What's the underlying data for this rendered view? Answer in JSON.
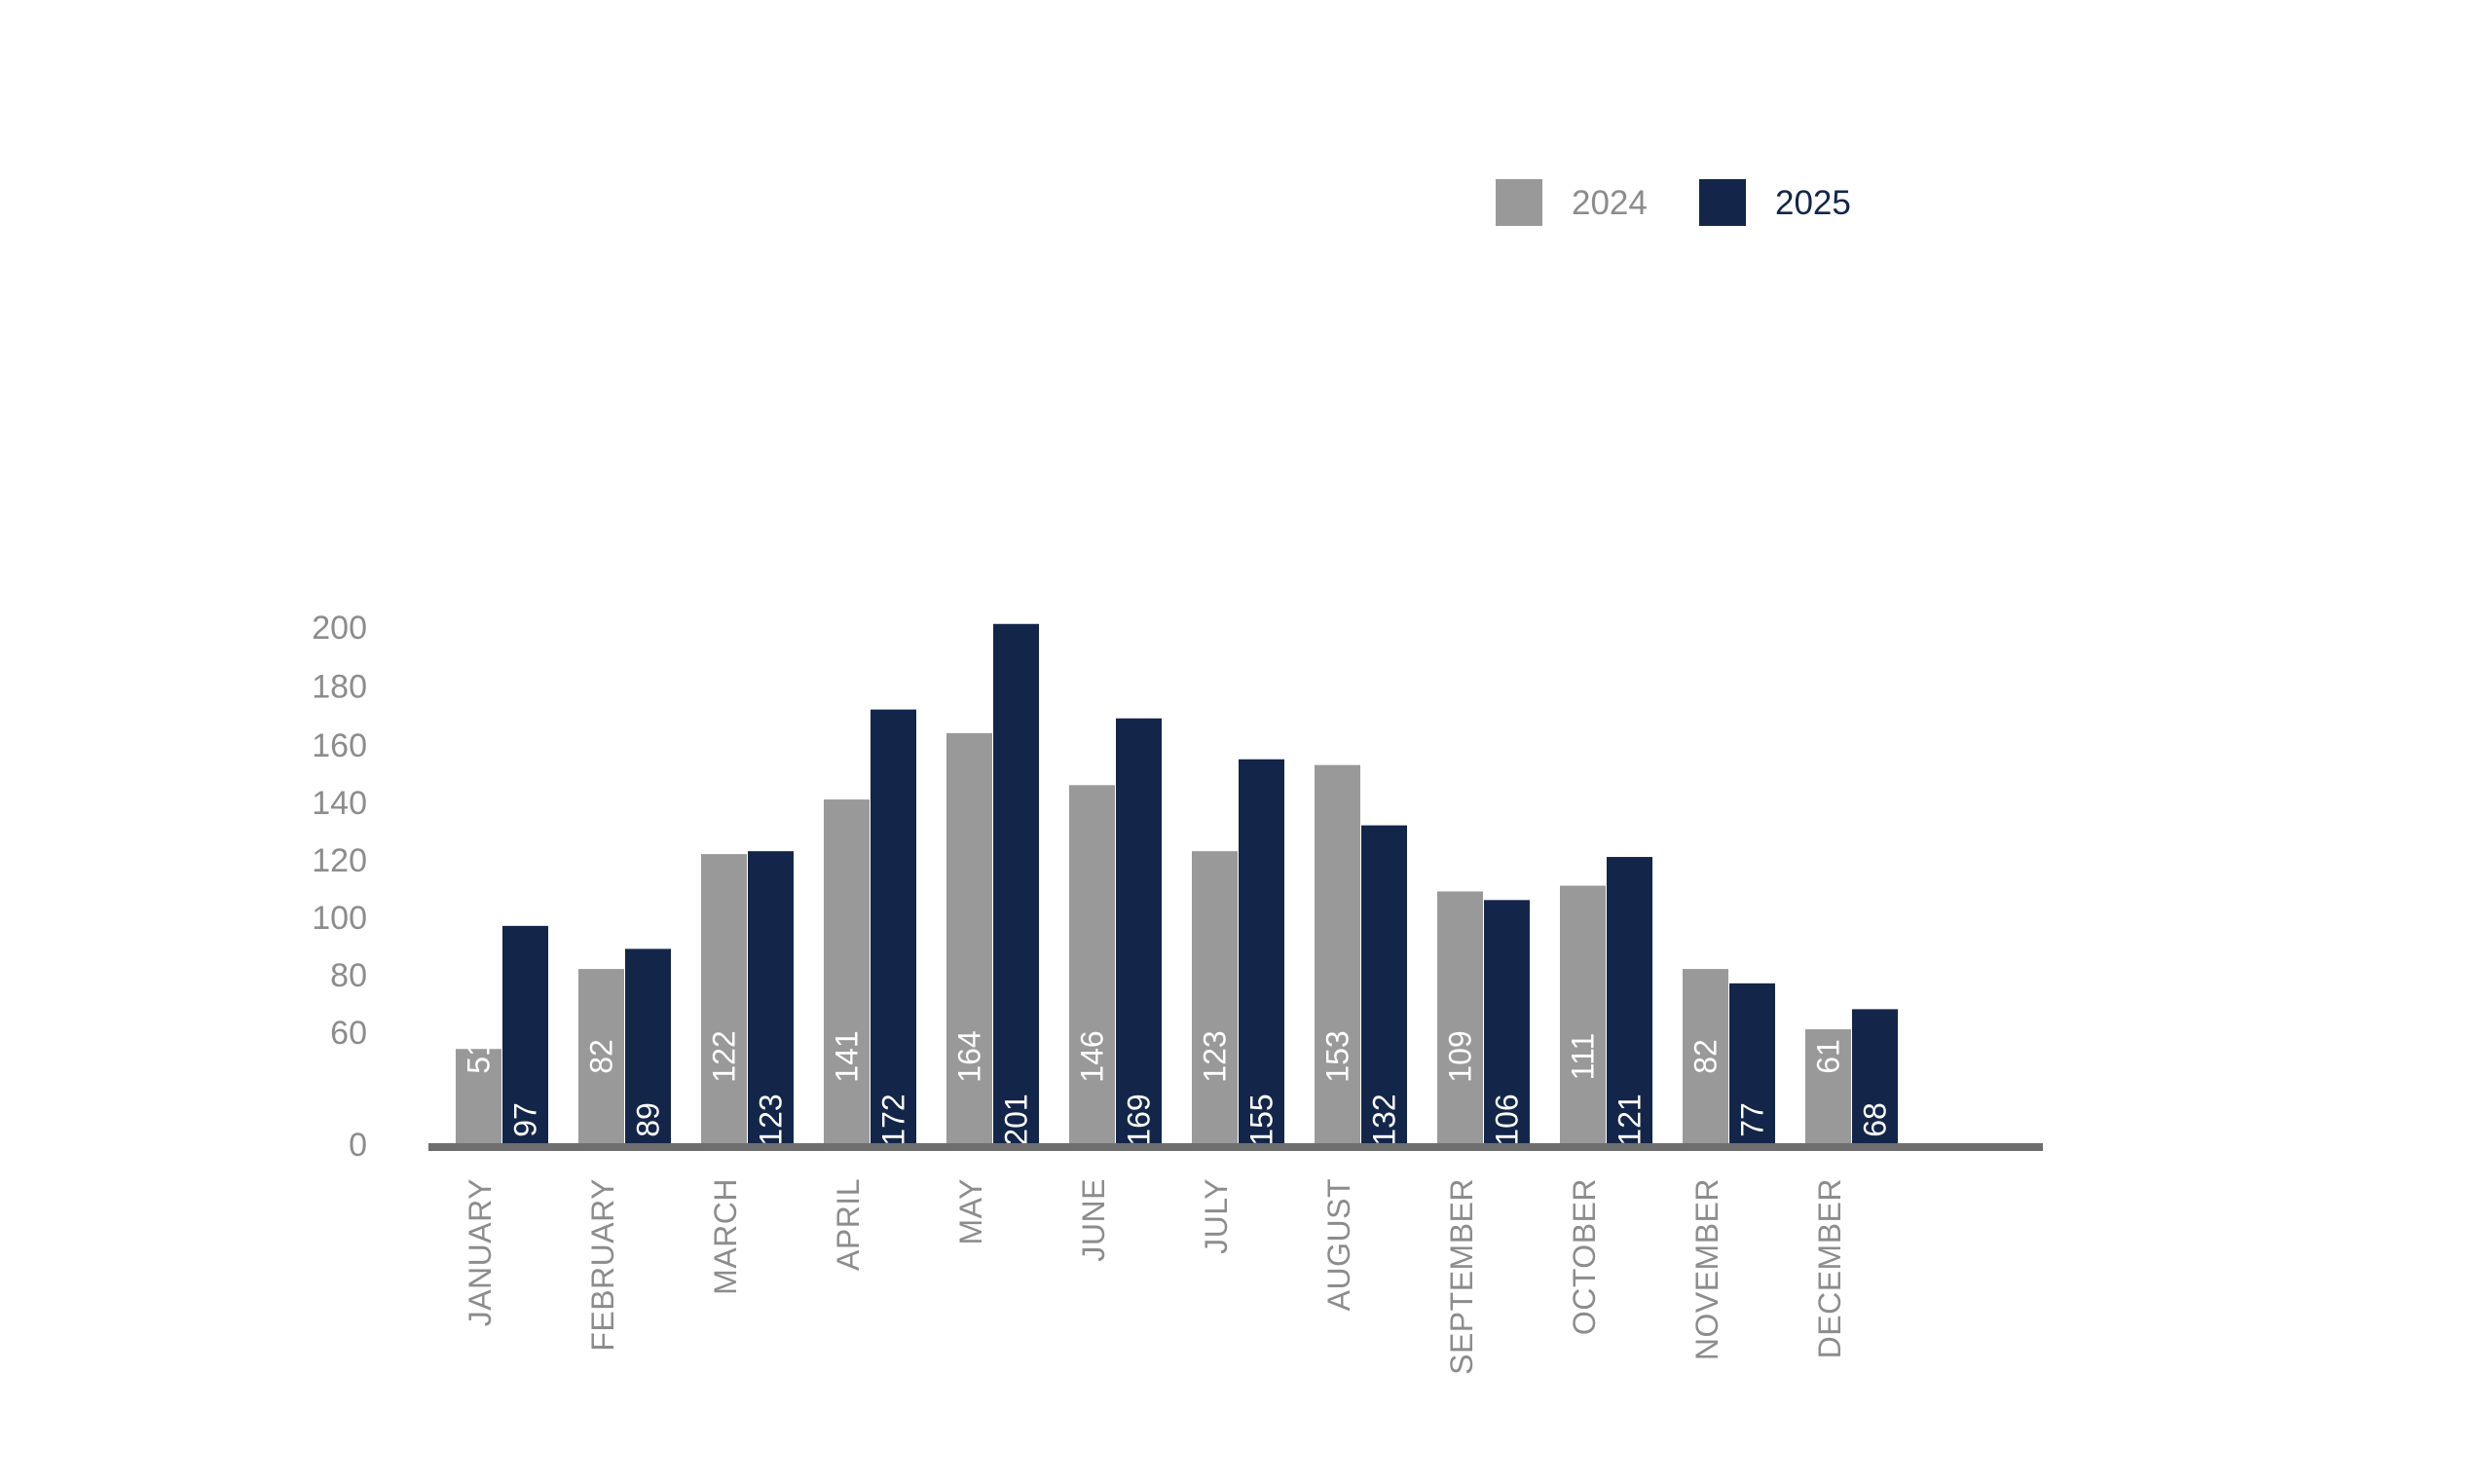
{
  "chart_data": {
    "type": "bar",
    "categories": [
      "JANUARY",
      "FEBRUARY",
      "MARCH",
      "APRIL",
      "MAY",
      "JUNE",
      "JULY",
      "AUGUST",
      "SEPTEMBER",
      "OCTOBER",
      "NOVEMBER",
      "DECEMBER"
    ],
    "series": [
      {
        "name": "2024",
        "color": "#999999",
        "label_color": "#8c8c8c",
        "values": [
          51,
          82,
          122,
          141,
          164,
          146,
          123,
          153,
          109,
          111,
          82,
          61
        ]
      },
      {
        "name": "2025",
        "color": "#13264a",
        "label_color": "#13264a",
        "values": [
          97,
          89,
          123,
          172,
          201,
          169,
          155,
          132,
          106,
          121,
          77,
          68
        ]
      }
    ],
    "y_ticks": [
      "0",
      "60",
      "80",
      "100",
      "120",
      "140",
      "160",
      "180",
      "200"
    ],
    "ylim": [
      0,
      200
    ],
    "legend_position": "top-right",
    "grid": false,
    "title": "",
    "xlabel": "",
    "ylabel": ""
  }
}
